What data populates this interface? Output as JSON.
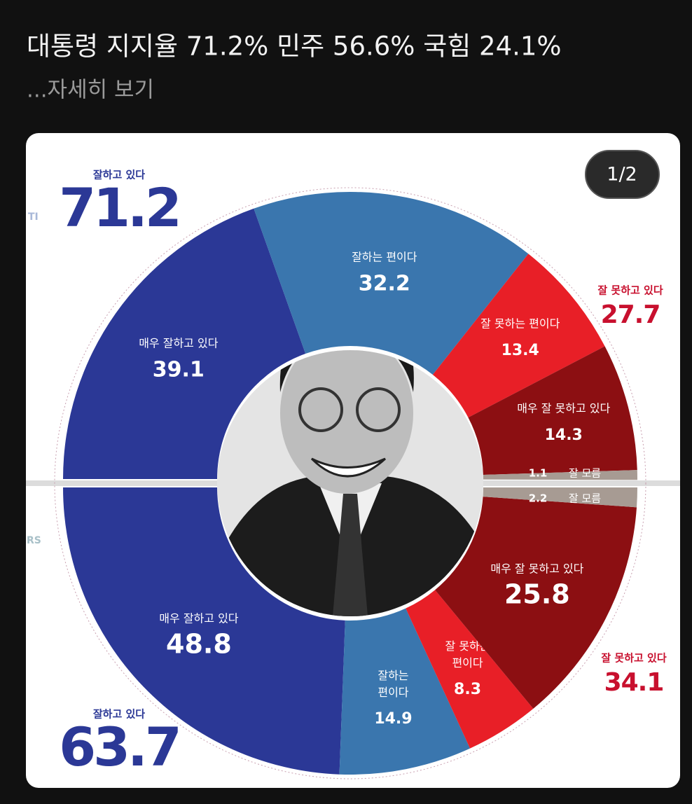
{
  "header": {
    "title": "대통령 지지율 71.2% 민주 56.6% 국힘 24.1%",
    "more": "...자세히 보기"
  },
  "page_indicator": "1/2",
  "edge_labels": [
    "TI",
    "RS"
  ],
  "chart_data": [
    {
      "type": "pie",
      "half": "top",
      "categories": [
        "매우 잘하고 있다",
        "잘하는 편이다",
        "잘 못하는 편이다",
        "매우 잘 못하고 있다",
        "잘 모름"
      ],
      "values": [
        39.1,
        32.2,
        13.4,
        14.3,
        1.1
      ],
      "colors": [
        "#2b3896",
        "#3a76ae",
        "#e81f27",
        "#8c0f12",
        "#a79b93"
      ],
      "summary": [
        {
          "label": "잘하고 있다",
          "value": 71.2,
          "color": "#2b3896"
        },
        {
          "label": "잘 못하고 있다",
          "value": 27.7,
          "color": "#c8102e"
        }
      ]
    },
    {
      "type": "pie",
      "half": "bottom",
      "categories": [
        "매우 잘하고 있다",
        "잘하는 편이다",
        "잘 못하는 편이다",
        "매우 잘 못하고 있다",
        "잘 모름"
      ],
      "values": [
        48.8,
        14.9,
        8.3,
        25.8,
        2.2
      ],
      "colors": [
        "#2b3896",
        "#3a76ae",
        "#e81f27",
        "#8c0f12",
        "#a79b93"
      ],
      "summary": [
        {
          "label": "잘하고 있다",
          "value": 63.7,
          "color": "#2b3896"
        },
        {
          "label": "잘 못하고 있다",
          "value": 34.1,
          "color": "#c8102e"
        }
      ]
    }
  ]
}
